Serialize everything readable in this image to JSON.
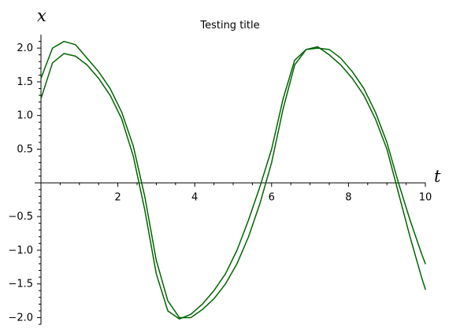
{
  "chart_data": {
    "type": "line",
    "title": "Testing title",
    "xlabel": "t",
    "ylabel": "x",
    "xlim": [
      0,
      10
    ],
    "ylim": [
      -2.1,
      2.2
    ],
    "x_ticks": [
      2,
      4,
      6,
      8,
      10
    ],
    "x_tick_labels": [
      "2",
      "4",
      "6",
      "8",
      "10"
    ],
    "y_ticks": [
      -2.0,
      -1.5,
      -1.0,
      -0.5,
      0.5,
      1.0,
      1.5,
      2.0
    ],
    "y_tick_labels": [
      "−2.0",
      "−1.5",
      "−1.0",
      "−0.5",
      "0.5",
      "1.0",
      "1.5",
      "2.0"
    ],
    "grid": false,
    "series": [
      {
        "color": "#006400",
        "x": [
          0,
          0.3,
          0.6,
          0.9,
          1.2,
          1.5,
          1.8,
          2.1,
          2.4,
          2.7,
          3.0,
          3.3,
          3.6,
          3.9,
          4.2,
          4.5,
          4.8,
          5.1,
          5.4,
          5.7,
          6.0,
          6.3,
          6.6,
          6.9,
          7.2,
          7.5,
          7.8,
          8.1,
          8.4,
          8.7,
          9.0,
          9.3,
          9.6,
          9.9,
          10.0
        ],
        "values": [
          1.55,
          2.0,
          2.1,
          2.05,
          1.85,
          1.65,
          1.4,
          1.05,
          0.55,
          -0.2,
          -1.15,
          -1.75,
          -2.0,
          -2.0,
          -1.88,
          -1.72,
          -1.5,
          -1.2,
          -0.8,
          -0.3,
          0.3,
          1.1,
          1.75,
          1.98,
          2.02,
          1.9,
          1.75,
          1.55,
          1.3,
          0.95,
          0.5,
          -0.15,
          -0.8,
          -1.4,
          -1.58
        ]
      },
      {
        "color": "#006400",
        "x": [
          0,
          0.3,
          0.6,
          0.9,
          1.2,
          1.5,
          1.8,
          2.1,
          2.4,
          2.7,
          3.0,
          3.3,
          3.6,
          3.9,
          4.2,
          4.5,
          4.8,
          5.1,
          5.4,
          5.7,
          6.0,
          6.3,
          6.6,
          6.9,
          7.2,
          7.5,
          7.8,
          8.1,
          8.4,
          8.7,
          9.0,
          9.3,
          9.6,
          9.9,
          10.0
        ],
        "values": [
          1.25,
          1.78,
          1.92,
          1.88,
          1.75,
          1.55,
          1.3,
          0.95,
          0.4,
          -0.4,
          -1.35,
          -1.9,
          -2.02,
          -1.95,
          -1.8,
          -1.6,
          -1.35,
          -1.0,
          -0.55,
          -0.05,
          0.5,
          1.25,
          1.82,
          1.98,
          2.0,
          1.98,
          1.85,
          1.65,
          1.4,
          1.05,
          0.6,
          0.0,
          -0.55,
          -1.05,
          -1.2
        ]
      }
    ]
  }
}
